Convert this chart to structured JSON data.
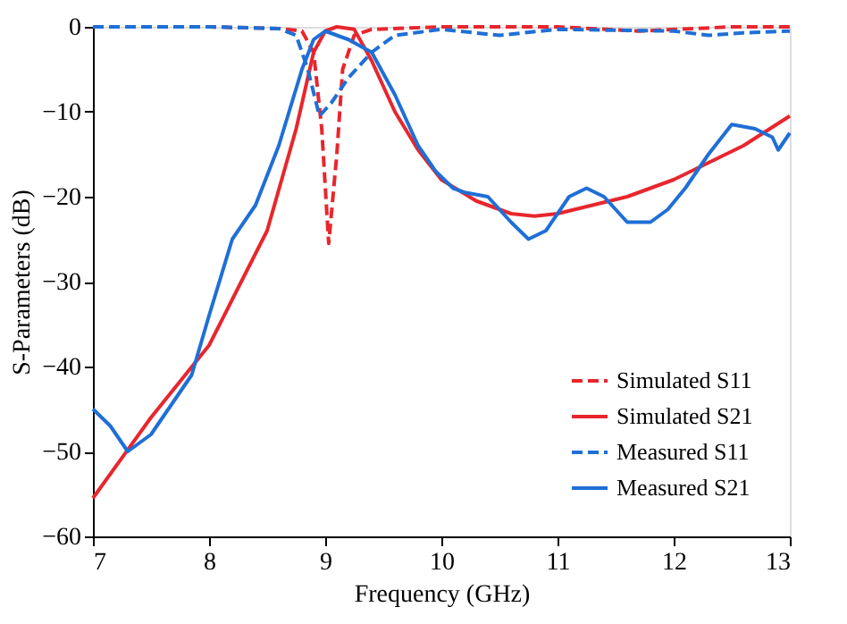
{
  "chart_data": {
    "type": "line",
    "xlabel": "Frequency (GHz)",
    "ylabel": "S-Parameters (dB)",
    "xlim": [
      7,
      13
    ],
    "ylim": [
      -60,
      0
    ],
    "xticks": [
      7,
      8,
      9,
      10,
      11,
      12,
      13
    ],
    "yticks": [
      -60,
      -50,
      -40,
      -30,
      -20,
      -10,
      0
    ],
    "grid": false,
    "legend": "bottom right",
    "marker": "none",
    "series": [
      {
        "name": "Simulated S11",
        "color": "#e8262d",
        "line_style": "dashed",
        "x": [
          7,
          8,
          8.6,
          8.8,
          8.9,
          8.97,
          9.03,
          9.1,
          9.15,
          9.25,
          9.4,
          10,
          11,
          11.7,
          12.5,
          13
        ],
        "values": [
          0,
          0,
          -0.2,
          -0.5,
          -3,
          -12,
          -25.5,
          -15,
          -5,
          -1,
          -0.3,
          0,
          0,
          -0.5,
          0,
          0
        ]
      },
      {
        "name": "Simulated S21",
        "color": "#e8262d",
        "line_style": "solid",
        "x": [
          7,
          7.5,
          8,
          8.5,
          8.75,
          8.9,
          9,
          9.1,
          9.25,
          9.4,
          9.6,
          9.8,
          10,
          10.3,
          10.6,
          10.8,
          11,
          11.3,
          11.6,
          12,
          12.3,
          12.6,
          13
        ],
        "values": [
          -55.5,
          -46,
          -37.5,
          -24,
          -12,
          -3,
          -0.5,
          0,
          -0.3,
          -4,
          -10,
          -14.5,
          -18,
          -20.5,
          -22,
          -22.3,
          -22,
          -21,
          -20,
          -18,
          -16,
          -14,
          -10.5
        ]
      },
      {
        "name": "Measured S11",
        "color": "#1f6fd6",
        "line_style": "dashed",
        "x": [
          7,
          8,
          8.6,
          8.75,
          8.85,
          8.95,
          9.05,
          9.2,
          9.4,
          9.6,
          10,
          10.5,
          11,
          12,
          12.3,
          12.6,
          13
        ],
        "values": [
          0,
          0,
          -0.2,
          -1,
          -5,
          -10.5,
          -9,
          -6,
          -3,
          -1,
          -0.3,
          -1,
          -0.3,
          -0.5,
          -1,
          -0.7,
          -0.5
        ]
      },
      {
        "name": "Measured S21",
        "color": "#1f6fd6",
        "line_style": "solid",
        "x": [
          7,
          7.15,
          7.3,
          7.5,
          7.7,
          7.85,
          8,
          8.2,
          8.4,
          8.6,
          8.8,
          8.9,
          9,
          9.2,
          9.4,
          9.6,
          9.8,
          9.95,
          10.1,
          10.2,
          10.4,
          10.6,
          10.75,
          10.9,
          11.1,
          11.25,
          11.4,
          11.6,
          11.8,
          11.95,
          12.1,
          12.3,
          12.5,
          12.7,
          12.85,
          12.9,
          13
        ],
        "values": [
          -45,
          -47,
          -50,
          -48,
          -44,
          -41,
          -34,
          -25,
          -21,
          -14,
          -5,
          -1.5,
          -0.5,
          -1.5,
          -3,
          -8,
          -14,
          -17,
          -19,
          -19.5,
          -20,
          -23,
          -25,
          -24,
          -20,
          -19,
          -20,
          -23,
          -23,
          -21.5,
          -19,
          -15,
          -11.5,
          -12,
          -13,
          -14.5,
          -12.5
        ]
      }
    ]
  }
}
